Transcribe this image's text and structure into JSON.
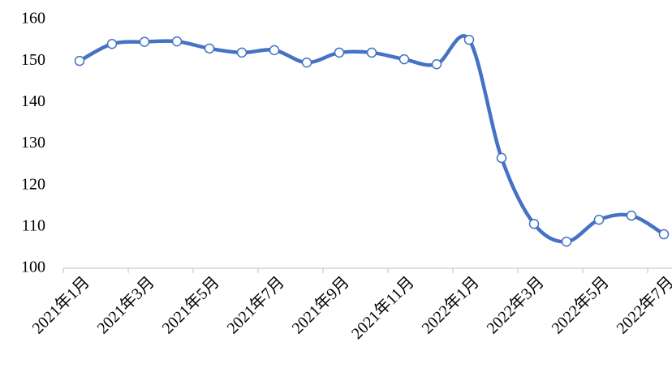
{
  "chart_data": {
    "type": "line",
    "categories": [
      "2021年1月",
      null,
      "2021年3月",
      null,
      "2021年5月",
      null,
      "2021年7月",
      null,
      "2021年9月",
      null,
      "2021年11月",
      null,
      "2022年1月",
      null,
      "2022年3月",
      null,
      "2022年5月",
      null,
      "2022年7月"
    ],
    "series": [
      {
        "name": "price",
        "color": "#4472c4",
        "values": [
          150.0,
          154.1,
          154.6,
          154.7,
          153.0,
          152.0,
          152.6,
          149.6,
          152.0,
          152.0,
          150.4,
          149.2,
          155.1,
          126.6,
          110.7,
          106.4,
          111.7,
          112.7,
          108.2
        ]
      }
    ],
    "ylim": [
      100,
      160
    ],
    "yticks": [
      100,
      110,
      120,
      130,
      140,
      150,
      160
    ],
    "smooth": true,
    "markers": true
  }
}
